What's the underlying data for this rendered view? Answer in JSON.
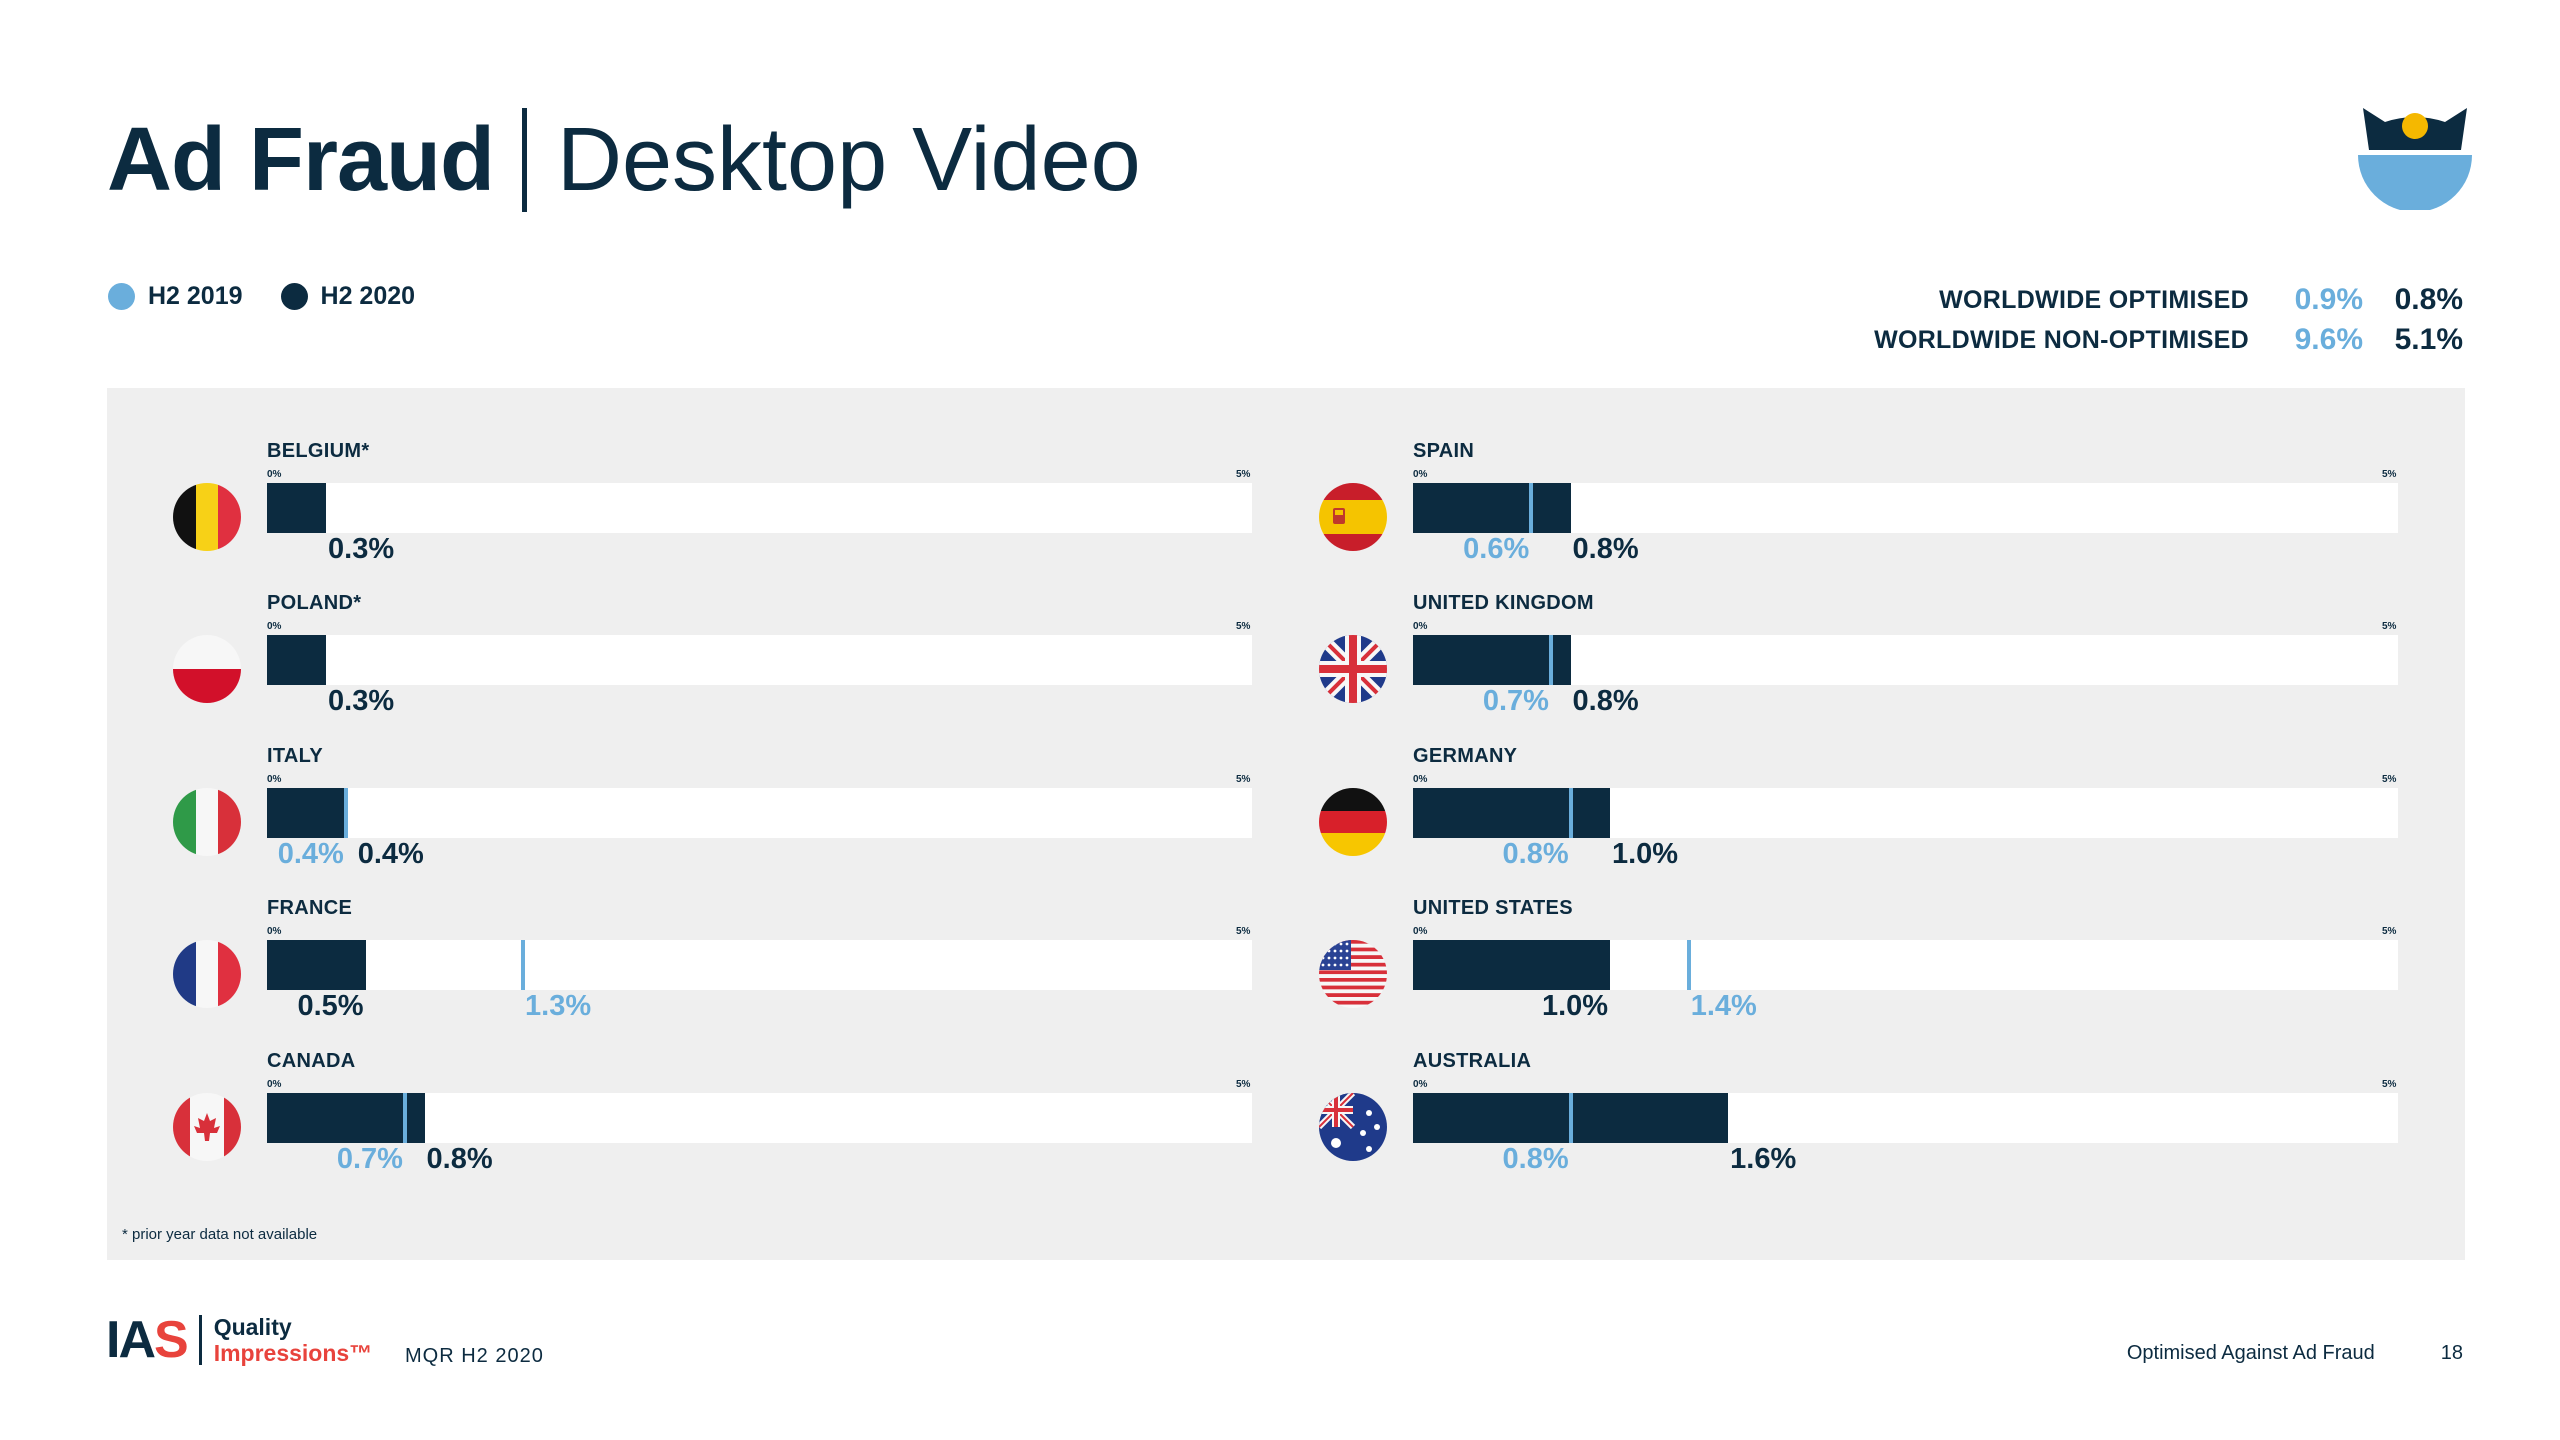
{
  "title": {
    "bold": "Ad Fraud",
    "light": "Desktop Video"
  },
  "legend": [
    {
      "label": "H2 2019",
      "color": "#6aaedc"
    },
    {
      "label": "H2 2020",
      "color": "#0c2b40"
    }
  ],
  "worldwide": [
    {
      "label": "WORLDWIDE OPTIMISED",
      "h2_2019": "0.9%",
      "h2_2020": "0.8%"
    },
    {
      "label": "WORLDWIDE NON-OPTIMISED",
      "h2_2019": "9.6%",
      "h2_2020": "5.1%"
    }
  ],
  "chart_data": {
    "type": "bar",
    "axis_min_label": "0%",
    "axis_max_label": "5%",
    "xlim": [
      0,
      5
    ],
    "unit": "%",
    "series": [
      {
        "name": "H2 2019",
        "color": "#6aaedc"
      },
      {
        "name": "H2 2020",
        "color": "#0c2b40"
      }
    ],
    "countries": [
      {
        "name": "BELGIUM*",
        "flag": "belgium-flag-icon",
        "h2_2019": null,
        "h2_2020": 0.3,
        "l2019": "",
        "l2020": "0.3%"
      },
      {
        "name": "POLAND*",
        "flag": "poland-flag-icon",
        "h2_2019": null,
        "h2_2020": 0.3,
        "l2019": "",
        "l2020": "0.3%"
      },
      {
        "name": "ITALY",
        "flag": "italy-flag-icon",
        "h2_2019": 0.4,
        "h2_2020": 0.4,
        "l2019": "0.4%",
        "l2020": "0.4%"
      },
      {
        "name": "FRANCE",
        "flag": "france-flag-icon",
        "h2_2019": 1.3,
        "h2_2020": 0.5,
        "l2019": "1.3%",
        "l2020": "0.5%"
      },
      {
        "name": "CANADA",
        "flag": "canada-flag-icon",
        "h2_2019": 0.7,
        "h2_2020": 0.8,
        "l2019": "0.7%",
        "l2020": "0.8%"
      },
      {
        "name": "SPAIN",
        "flag": "spain-flag-icon",
        "h2_2019": 0.6,
        "h2_2020": 0.8,
        "l2019": "0.6%",
        "l2020": "0.8%"
      },
      {
        "name": "UNITED KINGDOM",
        "flag": "uk-flag-icon",
        "h2_2019": 0.7,
        "h2_2020": 0.8,
        "l2019": "0.7%",
        "l2020": "0.8%"
      },
      {
        "name": "GERMANY",
        "flag": "germany-flag-icon",
        "h2_2019": 0.8,
        "h2_2020": 1.0,
        "l2019": "0.8%",
        "l2020": "1.0%"
      },
      {
        "name": "UNITED STATES",
        "flag": "usa-flag-icon",
        "h2_2019": 1.4,
        "h2_2020": 1.0,
        "l2019": "1.4%",
        "l2020": "1.0%"
      },
      {
        "name": "AUSTRALIA",
        "flag": "australia-flag-icon",
        "h2_2019": 0.8,
        "h2_2020": 1.6,
        "l2019": "0.8%",
        "l2020": "1.6%"
      }
    ]
  },
  "footnote": "* prior year data not available",
  "footer": {
    "logo_ia": "IA",
    "logo_s": "S",
    "quality": "Quality",
    "impressions": "Impressions™",
    "report": "MQR H2 2020",
    "section": "Optimised Against Ad Fraud",
    "page": "18"
  }
}
